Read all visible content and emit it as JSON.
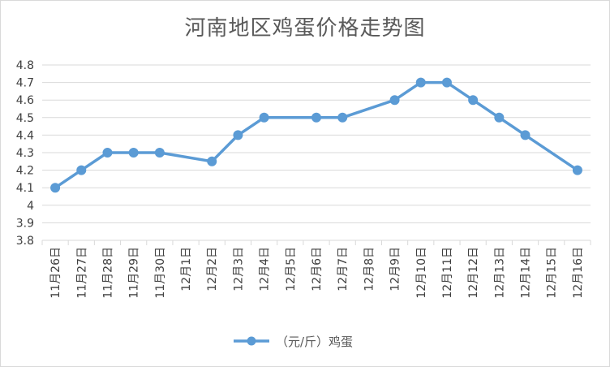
{
  "chart_data": {
    "type": "line",
    "title": "河南地区鸡蛋价格走势图",
    "xlabel": "",
    "ylabel": "",
    "ylim": [
      3.8,
      4.8
    ],
    "yticks": [
      "4.8",
      "4.7",
      "4.6",
      "4.5",
      "4.4",
      "4.3",
      "4.2",
      "4.1",
      "4",
      "3.9",
      "3.8"
    ],
    "categories": [
      "11月26日",
      "11月27日",
      "11月28日",
      "11月29日",
      "11月30日",
      "12月1日",
      "12月2日",
      "12月3日",
      "12月4日",
      "12月5日",
      "12月6日",
      "12月7日",
      "12月8日",
      "12月9日",
      "12月10日",
      "12月11日",
      "12月12日",
      "12月13日",
      "12月14日",
      "12月15日",
      "12月16日"
    ],
    "series": [
      {
        "name": "（元/斤）鸡蛋",
        "color": "#5b9bd5",
        "values": [
          4.1,
          4.2,
          4.3,
          4.3,
          4.3,
          null,
          4.25,
          4.4,
          4.5,
          null,
          4.5,
          4.5,
          null,
          4.6,
          4.7,
          4.7,
          4.6,
          4.5,
          4.4,
          null,
          4.2
        ]
      }
    ],
    "grid": true,
    "legend_position": "bottom"
  }
}
